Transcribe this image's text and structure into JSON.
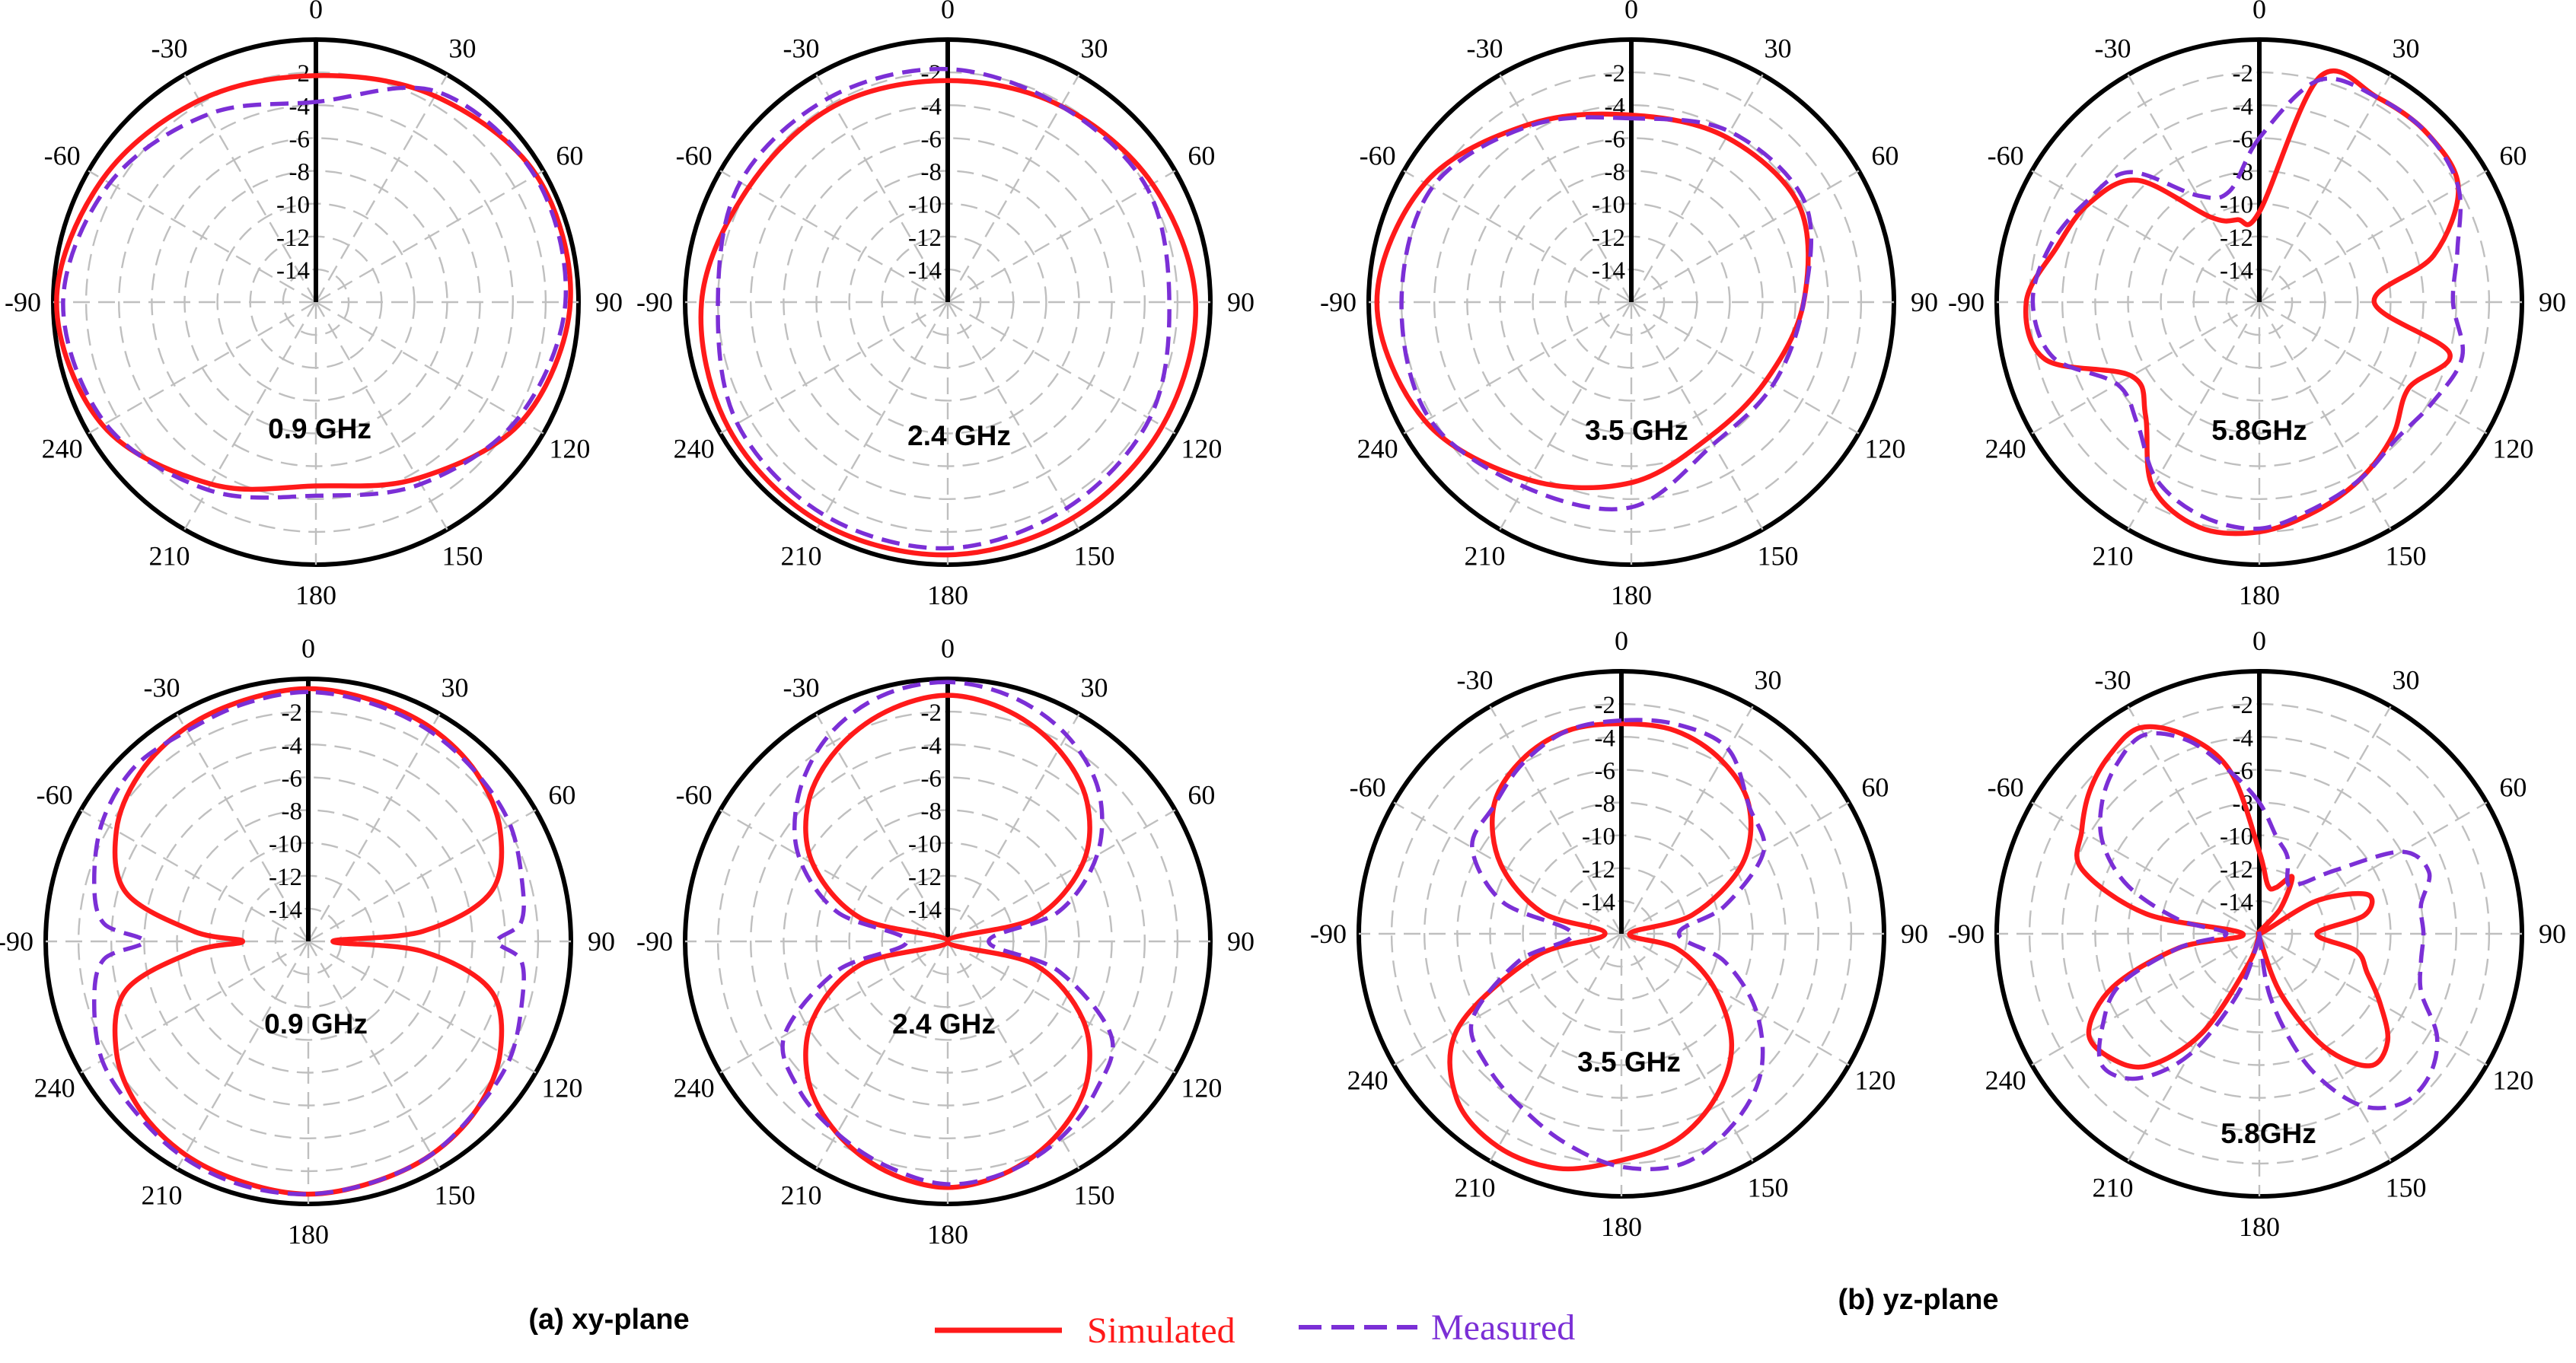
{
  "legend": {
    "simulated_label": "Simulated",
    "measured_label": "Measured",
    "simulated_color": "#ff1a1a",
    "measured_color": "#7b2fd6"
  },
  "captions": {
    "xy": "(a) xy-plane",
    "yz": "(b) yz-plane"
  },
  "polar_axis": {
    "angle_labels": [
      "0",
      "-30",
      "-60",
      "-90",
      "240",
      "210",
      "180",
      "150",
      "120",
      "90",
      "60",
      "30"
    ],
    "radial_labels": [
      "-2",
      "-4",
      "-6",
      "-8",
      "-10",
      "-12",
      "-14"
    ],
    "r_range_db": [
      -16,
      0
    ],
    "grid": true
  },
  "chart_data": [
    {
      "type": "polar",
      "plane": "xy-plane",
      "label": "0.9 GHz",
      "theta_deg": [
        0,
        30,
        60,
        90,
        120,
        150,
        180,
        210,
        240,
        270,
        300,
        330
      ],
      "series": [
        {
          "name": "Simulated",
          "values_db": [
            -2.2,
            -1.8,
            -1.0,
            -0.2,
            -1.0,
            -3.2,
            -4.8,
            -3.6,
            -1.5,
            -0.5,
            -0.5,
            -1.5
          ]
        },
        {
          "name": "Measured",
          "values_db": [
            -3.8,
            -2.8,
            -1.5,
            -0.6,
            -1.2,
            -2.8,
            -4.2,
            -3.2,
            -1.8,
            -0.8,
            -0.6,
            -1.2
          ]
        }
      ]
    },
    {
      "type": "polar",
      "plane": "xy-plane",
      "label": "2.4 GHz",
      "theta_deg": [
        0,
        30,
        60,
        90,
        120,
        150,
        180,
        210,
        240,
        270,
        300,
        330
      ],
      "series": [
        {
          "name": "Simulated",
          "values_db": [
            -2.5,
            -2.2,
            -2.0,
            -1.0,
            -0.6,
            -0.5,
            -0.6,
            -0.8,
            -0.9,
            -0.9,
            -1.6,
            -2.2
          ]
        },
        {
          "name": "Measured",
          "values_db": [
            -1.8,
            -1.6,
            -1.4,
            -2.0,
            -1.2,
            -1.0,
            -1.0,
            -1.5,
            -1.8,
            -2.5,
            -2.0,
            -2.2
          ]
        }
      ]
    },
    {
      "type": "polar",
      "plane": "xy-plane",
      "label": "3.5 GHz",
      "theta_deg": [
        0,
        30,
        60,
        90,
        120,
        150,
        180,
        210,
        240,
        270,
        300,
        330
      ],
      "series": [
        {
          "name": "Simulated",
          "values_db": [
            -4.6,
            -3.5,
            -1.5,
            -0.5,
            -1.5,
            -3.5,
            -5.0,
            -6.5,
            -6.5,
            -5.5,
            -4.2,
            -4.4
          ]
        },
        {
          "name": "Measured",
          "values_db": [
            -4.8,
            -3.6,
            -2.0,
            -2.0,
            -1.8,
            -3.0,
            -3.5,
            -6.0,
            -6.0,
            -5.5,
            -3.8,
            -4.0
          ]
        }
      ]
    },
    {
      "type": "polar",
      "plane": "xy-plane",
      "label": "5.8GHz",
      "theta_deg": [
        0,
        15,
        30,
        45,
        60,
        75,
        90,
        105,
        120,
        135,
        150,
        165,
        180,
        195,
        210,
        225,
        240,
        255,
        270,
        285,
        300,
        315,
        330,
        345
      ],
      "series": [
        {
          "name": "Simulated",
          "values_db": [
            -10.5,
            -10.8,
            -10.0,
            -5.5,
            -4.0,
            -3.2,
            -1.8,
            -2.5,
            -7.0,
            -6.2,
            -3.0,
            -1.8,
            -2.0,
            -2.8,
            -3.6,
            -4.5,
            -5.5,
            -4.0,
            -9.0,
            -5.0,
            -2.0,
            -1.5,
            -1.6,
            -1.8
          ]
        },
        {
          "name": "Measured",
          "values_db": [
            -6.0,
            -9.0,
            -8.5,
            -4.8,
            -3.8,
            -2.8,
            -2.2,
            -3.0,
            -6.0,
            -5.5,
            -3.5,
            -2.5,
            -2.2,
            -3.0,
            -3.6,
            -4.2,
            -3.8,
            -3.2,
            -4.2,
            -3.5,
            -2.0,
            -1.5,
            -1.6,
            -2.0
          ]
        }
      ]
    },
    {
      "type": "polar",
      "plane": "yz-plane",
      "label": "0.9 GHz",
      "theta_deg": [
        0,
        15,
        30,
        45,
        60,
        75,
        85,
        90,
        95,
        105,
        120,
        135,
        150,
        165,
        180,
        195,
        210,
        225,
        240,
        255,
        265,
        270,
        275,
        285,
        300,
        315,
        330,
        345
      ],
      "series": [
        {
          "name": "Simulated",
          "values_db": [
            -0.6,
            -0.8,
            -1.0,
            -1.5,
            -2.5,
            -4.5,
            -9.0,
            -12.0,
            -9.0,
            -4.5,
            -2.5,
            -1.5,
            -1.0,
            -0.8,
            -0.6,
            -0.8,
            -1.0,
            -1.5,
            -2.5,
            -4.5,
            -9.0,
            -14.5,
            -9.0,
            -4.5,
            -2.5,
            -1.5,
            -1.0,
            -0.8
          ]
        },
        {
          "name": "Measured",
          "values_db": [
            -0.8,
            -1.0,
            -1.2,
            -1.0,
            -1.5,
            -2.5,
            -3.5,
            -6.0,
            -3.5,
            -2.5,
            -1.5,
            -1.2,
            -0.8,
            -0.6,
            -0.6,
            -0.8,
            -1.0,
            -1.5,
            -1.8,
            -2.5,
            -3.0,
            -4.5,
            -3.0,
            -2.5,
            -1.8,
            -1.5,
            -1.2,
            -1.0
          ]
        }
      ]
    },
    {
      "type": "polar",
      "plane": "yz-plane",
      "label": "2.4 GHz",
      "theta_deg": [
        0,
        15,
        30,
        45,
        60,
        75,
        90,
        105,
        120,
        135,
        150,
        165,
        180,
        195,
        210,
        225,
        240,
        255,
        270,
        285,
        300,
        315,
        330,
        345
      ],
      "series": [
        {
          "name": "Simulated",
          "values_db": [
            -1.0,
            -1.5,
            -2.5,
            -4.0,
            -6.5,
            -10.5,
            -16.0,
            -10.5,
            -6.5,
            -4.0,
            -2.5,
            -1.5,
            -1.0,
            -1.5,
            -2.5,
            -4.0,
            -6.5,
            -10.5,
            -16.0,
            -10.5,
            -6.5,
            -4.0,
            -2.5,
            -1.5
          ]
        },
        {
          "name": "Measured",
          "values_db": [
            -0.2,
            -0.5,
            -1.5,
            -3.2,
            -5.5,
            -9.0,
            -13.5,
            -9.0,
            -4.5,
            -3.2,
            -2.5,
            -1.8,
            -1.2,
            -1.5,
            -2.2,
            -3.2,
            -4.5,
            -9.0,
            -13.5,
            -9.0,
            -5.5,
            -3.0,
            -1.5,
            -0.6
          ]
        }
      ]
    },
    {
      "type": "polar",
      "plane": "yz-plane",
      "label": "3.5 GHz",
      "theta_deg": [
        0,
        15,
        30,
        45,
        60,
        75,
        90,
        105,
        120,
        135,
        150,
        165,
        180,
        195,
        210,
        225,
        240,
        255,
        270,
        285,
        300,
        315,
        330,
        345
      ],
      "series": [
        {
          "name": "Simulated",
          "values_db": [
            -3.2,
            -3.2,
            -3.8,
            -5.0,
            -7.5,
            -11.0,
            -15.0,
            -10.5,
            -4.5,
            -1.8,
            -1.0,
            -1.2,
            -2.2,
            -3.0,
            -4.5,
            -6.5,
            -9.5,
            -12.5,
            -15.5,
            -11.5,
            -7.5,
            -5.0,
            -3.8,
            -3.2
          ]
        },
        {
          "name": "Measured",
          "values_db": [
            -3.0,
            -3.2,
            -4.0,
            -5.0,
            -5.5,
            -8.5,
            -13.0,
            -9.5,
            -5.5,
            -4.5,
            -3.8,
            -2.8,
            -1.8,
            -1.5,
            -2.5,
            -4.0,
            -6.5,
            -9.5,
            -12.5,
            -9.5,
            -6.0,
            -5.0,
            -3.0,
            -2.8
          ]
        }
      ]
    },
    {
      "type": "polar",
      "plane": "yz-plane",
      "label": "5.8GHz",
      "theta_deg": [
        0,
        10,
        20,
        30,
        40,
        50,
        60,
        70,
        80,
        90,
        100,
        110,
        120,
        130,
        140,
        150,
        160,
        170,
        180,
        190,
        200,
        210,
        220,
        230,
        240,
        250,
        260,
        270,
        280,
        290,
        300,
        310,
        320,
        330,
        340,
        350
      ],
      "series": [
        {
          "name": "Simulated",
          "values_db": [
            -11.0,
            -6.0,
            -3.2,
            -1.5,
            -1.8,
            -2.5,
            -3.5,
            -4.5,
            -9.0,
            -15.0,
            -11.0,
            -6.5,
            -4.0,
            -4.2,
            -5.5,
            -9.0,
            -14.0,
            -16.0,
            -16.0,
            -15.5,
            -12.0,
            -8.0,
            -5.5,
            -5.8,
            -7.5,
            -9.0,
            -10.0,
            -12.5,
            -9.5,
            -9.0,
            -12.0,
            -16.0,
            -14.0,
            -12.0,
            -13.0,
            -13.0
          ]
        },
        {
          "name": "Measured",
          "values_db": [
            -8.0,
            -6.0,
            -3.5,
            -2.0,
            -2.5,
            -3.5,
            -5.0,
            -7.5,
            -11.0,
            -14.0,
            -11.0,
            -7.0,
            -5.0,
            -3.5,
            -4.5,
            -7.5,
            -12.0,
            -15.5,
            -16.0,
            -12.0,
            -7.5,
            -4.0,
            -2.5,
            -2.5,
            -3.5,
            -5.5,
            -6.0,
            -6.0,
            -6.0,
            -5.0,
            -6.0,
            -10.0,
            -12.0,
            -12.5,
            -11.0,
            -10.0
          ]
        }
      ]
    }
  ]
}
